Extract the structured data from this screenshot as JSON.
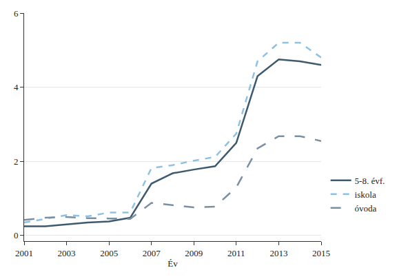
{
  "chart_data": {
    "type": "line",
    "x_label": "Év",
    "x": [
      2001,
      2002,
      2003,
      2004,
      2005,
      2006,
      2007,
      2008,
      2009,
      2010,
      2011,
      2012,
      2013,
      2014,
      2015
    ],
    "series": [
      {
        "name": "5-8. évf.",
        "color": "#3d5a6e",
        "line_style": "solid",
        "values": [
          0.25,
          0.25,
          0.3,
          0.35,
          0.38,
          0.48,
          1.4,
          1.68,
          1.78,
          1.87,
          2.5,
          4.3,
          4.75,
          4.7,
          4.6
        ]
      },
      {
        "name": "iskola",
        "color": "#8fc1e3",
        "line_style": "dash",
        "values": [
          0.35,
          0.45,
          0.55,
          0.52,
          0.62,
          0.62,
          1.82,
          1.9,
          2.02,
          2.12,
          2.75,
          4.7,
          5.2,
          5.2,
          4.8
        ]
      },
      {
        "name": "óvoda",
        "color": "#7b8fa3",
        "line_style": "longdash",
        "values": [
          0.42,
          0.48,
          0.5,
          0.47,
          0.46,
          0.45,
          0.88,
          0.82,
          0.76,
          0.78,
          1.3,
          2.35,
          2.68,
          2.68,
          2.55
        ]
      }
    ],
    "xlim": [
      2001,
      2015
    ],
    "xticks": [
      2001,
      2003,
      2005,
      2007,
      2009,
      2011,
      2013,
      2015
    ],
    "ylim": [
      -0.15,
      6
    ],
    "yticks": [
      0,
      2,
      4,
      6
    ],
    "grid": true,
    "legend": "right"
  }
}
